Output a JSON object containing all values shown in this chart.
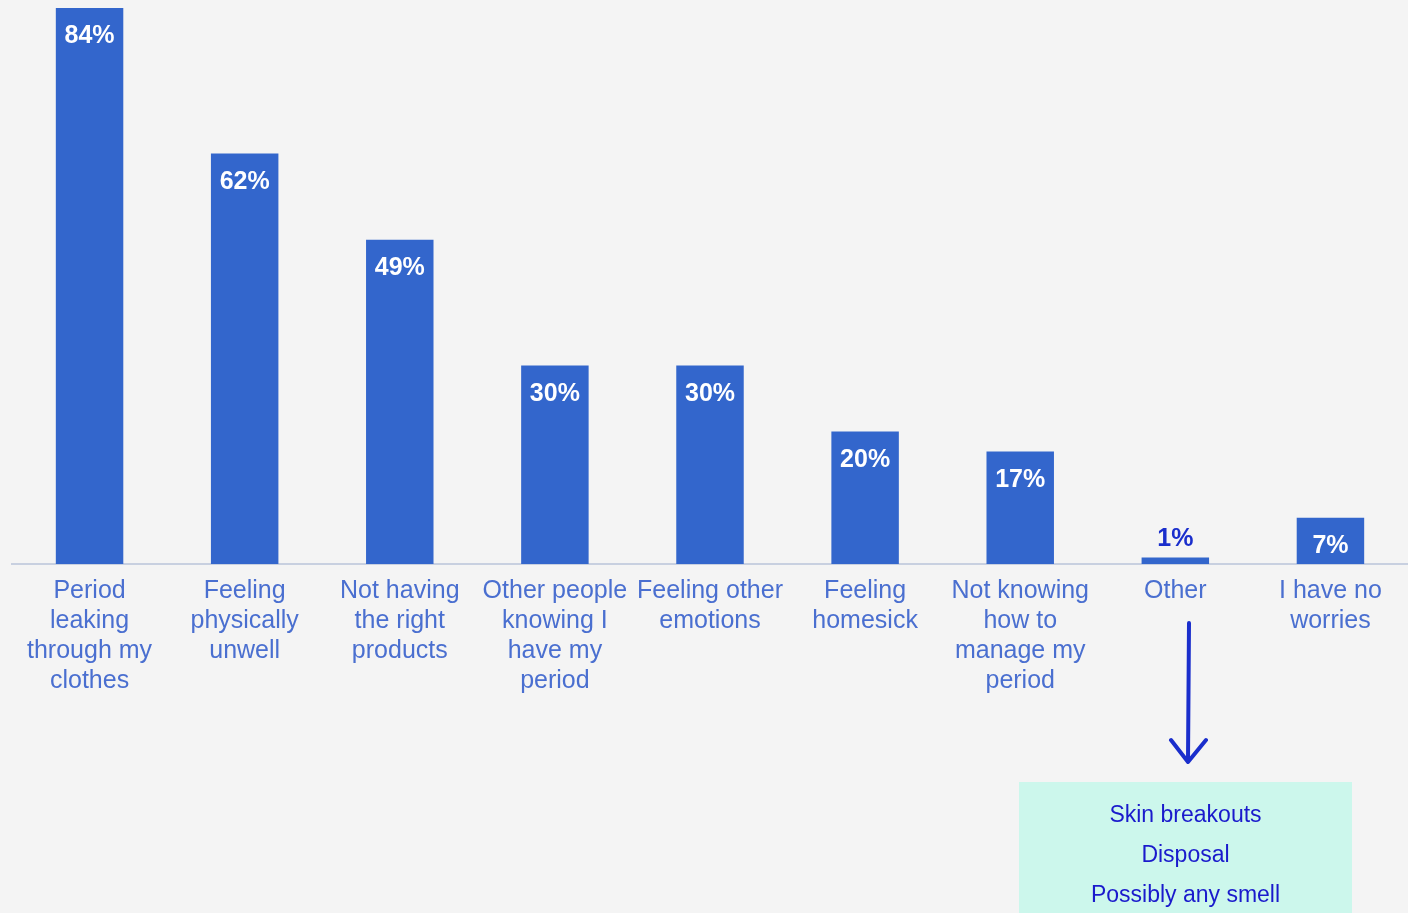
{
  "chart_data": {
    "type": "bar",
    "categories": [
      "Period leaking through my clothes",
      "Feeling physically unwell",
      "Not having the right products",
      "Other people knowing I have my period",
      "Feeling other emotions",
      "Feeling homesick",
      "Not knowing how to manage my period",
      "Other",
      "I have no worries"
    ],
    "values": [
      84,
      62,
      49,
      30,
      30,
      20,
      17,
      1,
      7
    ],
    "color": "#3366cc",
    "value_labels": [
      "84%",
      "62%",
      "49%",
      "30%",
      "30%",
      "20%",
      "17%",
      "1%",
      "7%"
    ],
    "tick_labels": "x",
    "annotations": [
      "Skin breakouts",
      "Disposal",
      "Possibly any smell"
    ]
  }
}
